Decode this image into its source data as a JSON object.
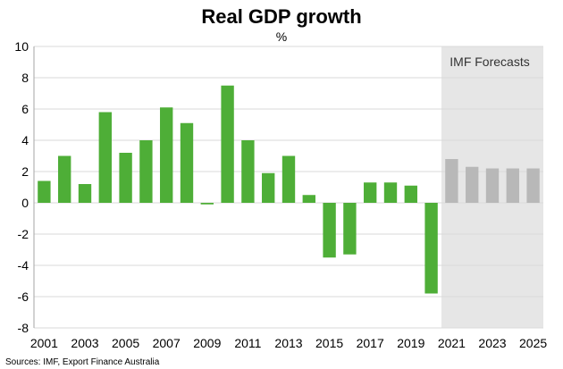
{
  "chart_data": {
    "type": "bar",
    "title": "Real GDP growth",
    "subtitle": "%",
    "xlabel": "",
    "ylabel": "",
    "ylim": [
      -8,
      10
    ],
    "y_ticks": [
      10,
      8,
      6,
      4,
      2,
      0,
      -2,
      -4,
      -6,
      -8
    ],
    "x_tick_labels": [
      "2001",
      "2003",
      "2005",
      "2007",
      "2009",
      "2011",
      "2013",
      "2015",
      "2017",
      "2019",
      "2021",
      "2023",
      "2025"
    ],
    "grid": "horizontal",
    "categories": [
      "2001",
      "2002",
      "2003",
      "2004",
      "2005",
      "2006",
      "2007",
      "2008",
      "2009",
      "2010",
      "2011",
      "2012",
      "2013",
      "2014",
      "2015",
      "2016",
      "2017",
      "2018",
      "2019",
      "2020",
      "2021",
      "2022",
      "2023",
      "2024",
      "2025"
    ],
    "values": [
      1.4,
      3.0,
      1.2,
      5.8,
      3.2,
      4.0,
      6.1,
      5.1,
      -0.1,
      7.5,
      4.0,
      1.9,
      3.0,
      0.5,
      -3.5,
      -3.3,
      1.3,
      1.3,
      1.1,
      -5.8,
      2.8,
      2.3,
      2.2,
      2.2,
      2.2
    ],
    "forecast_start": "2021",
    "forecast_label": "IMF Forecasts",
    "colors": {
      "actual": "#4eae37",
      "forecast": "#b8b8b8",
      "forecast_band": "#e6e6e6",
      "grid": "#d9d9d9",
      "axis": "#a6a6a6"
    },
    "source": "Sources: IMF, Export Finance Australia"
  }
}
